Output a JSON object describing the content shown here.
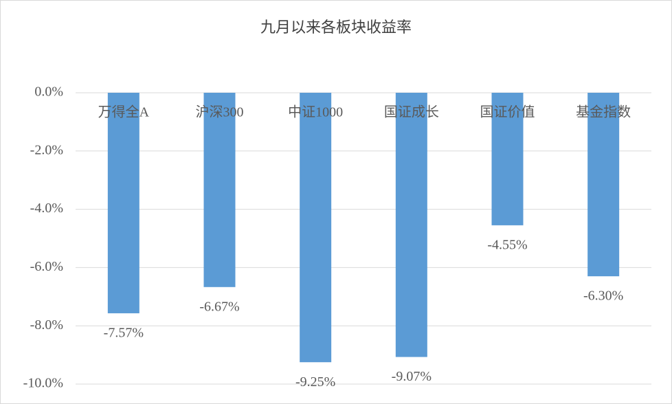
{
  "chart_data": {
    "type": "bar",
    "title": "九月以来各板块收益率",
    "categories": [
      "万得全A",
      "沪深300",
      "中证1000",
      "国证成长",
      "国证价值",
      "基金指数"
    ],
    "values": [
      -7.57,
      -6.67,
      -9.25,
      -9.07,
      -4.55,
      -6.3
    ],
    "value_labels": [
      "-7.57%",
      "-6.67%",
      "-9.25%",
      "-9.07%",
      "-4.55%",
      "-6.30%"
    ],
    "color": "#5b9bd5",
    "ylim": [
      -10,
      0
    ],
    "yticks": [
      {
        "value": 0,
        "label": "0.0%"
      },
      {
        "value": -2,
        "label": "-2.0%"
      },
      {
        "value": -4,
        "label": "-4.0%"
      },
      {
        "value": -6,
        "label": "-6.0%"
      },
      {
        "value": -8,
        "label": "-8.0%"
      },
      {
        "value": -10,
        "label": "-10.0%"
      }
    ],
    "grid": true
  }
}
